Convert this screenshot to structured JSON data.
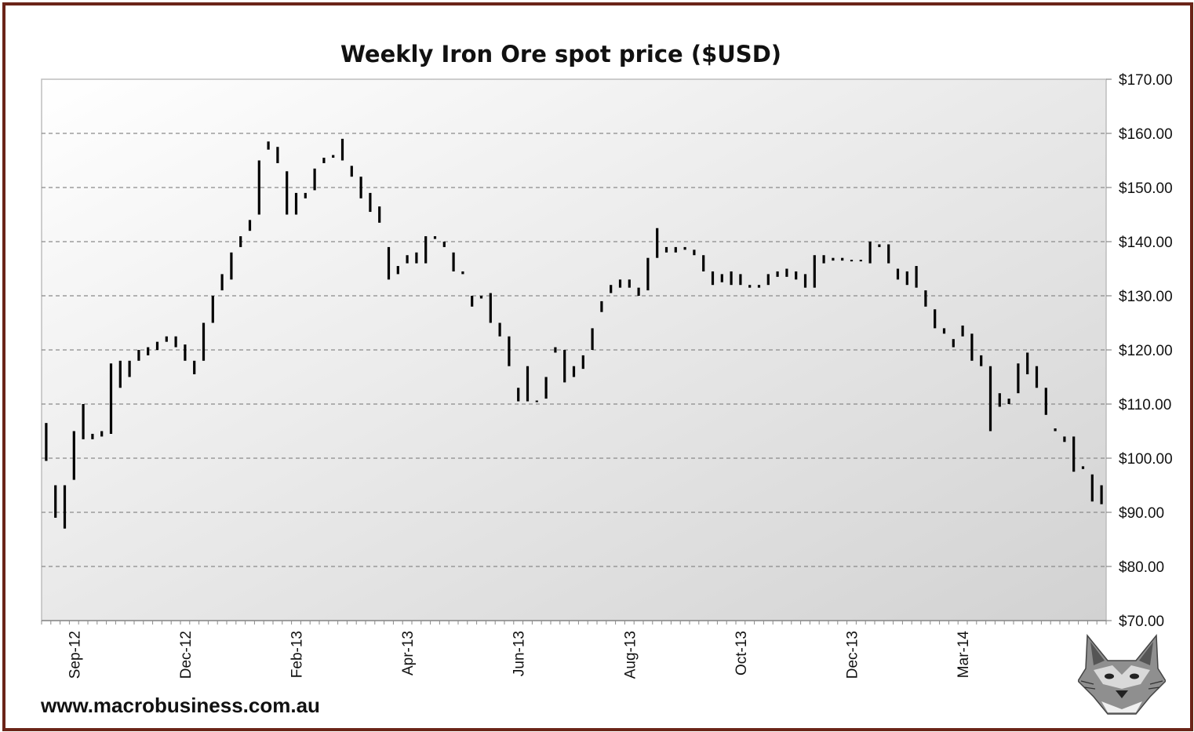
{
  "chart_data": {
    "type": "ohlc",
    "title": "Weekly Iron Ore spot price ($USD)",
    "xlabel": "",
    "ylabel": "",
    "ylim": [
      70,
      170
    ],
    "y_ticks": [
      "$70.00",
      "$80.00",
      "$90.00",
      "$100.00",
      "$110.00",
      "$120.00",
      "$130.00",
      "$140.00",
      "$150.00",
      "$160.00",
      "$170.00"
    ],
    "x_tick_labels": [
      {
        "label": "Sep-12",
        "week": 3
      },
      {
        "label": "Dec-12",
        "week": 15
      },
      {
        "label": "Feb-13",
        "week": 27
      },
      {
        "label": "Apr-13",
        "week": 39
      },
      {
        "label": "Jun-13",
        "week": 51
      },
      {
        "label": "Aug-13",
        "week": 63
      },
      {
        "label": "Oct-13",
        "week": 75
      },
      {
        "label": "Dec-13",
        "week": 87
      },
      {
        "label": "Mar-14",
        "week": 99
      }
    ],
    "grid": true,
    "legend": "none",
    "bars": [
      [
        106.5,
        99.5
      ],
      [
        95,
        89
      ],
      [
        95,
        87
      ],
      [
        105,
        96
      ],
      [
        110,
        103.5
      ],
      [
        104.5,
        103.5
      ],
      [
        105,
        104
      ],
      [
        117.5,
        104.5
      ],
      [
        118,
        113
      ],
      [
        118,
        115
      ],
      [
        120,
        118
      ],
      [
        120.5,
        119
      ],
      [
        121.5,
        120
      ],
      [
        122.5,
        121.5
      ],
      [
        122.5,
        120.5
      ],
      [
        121,
        118
      ],
      [
        118,
        115.5
      ],
      [
        125,
        118
      ],
      [
        130,
        125
      ],
      [
        134,
        131
      ],
      [
        138,
        133
      ],
      [
        141,
        139
      ],
      [
        144,
        142
      ],
      [
        155,
        145
      ],
      [
        158.5,
        157
      ],
      [
        157.5,
        154.5
      ],
      [
        153,
        145
      ],
      [
        149,
        145
      ],
      [
        149,
        148
      ],
      [
        153.5,
        149.5
      ],
      [
        155.5,
        154.5
      ],
      [
        156,
        155.5
      ],
      [
        159,
        155
      ],
      [
        154,
        152
      ],
      [
        152,
        148
      ],
      [
        149,
        145.5
      ],
      [
        146.5,
        143.5
      ],
      [
        139,
        133
      ],
      [
        135.5,
        134
      ],
      [
        137.5,
        136
      ],
      [
        138,
        136
      ],
      [
        141,
        136
      ],
      [
        141,
        140.5
      ],
      [
        140,
        139
      ],
      [
        138,
        134.5
      ],
      [
        134.5,
        134
      ],
      [
        130,
        128
      ],
      [
        130,
        129.5
      ],
      [
        130.5,
        125
      ],
      [
        125,
        122.5
      ],
      [
        122.5,
        117
      ],
      [
        113,
        110.5
      ],
      [
        117,
        110.5
      ],
      [
        110.5,
        110.5
      ],
      [
        115,
        111
      ],
      [
        120.5,
        119.5
      ],
      [
        120,
        114
      ],
      [
        117,
        115
      ],
      [
        119,
        116.5
      ],
      [
        124,
        120
      ],
      [
        129,
        127
      ],
      [
        132,
        130.5
      ],
      [
        133,
        131.5
      ],
      [
        133,
        131.5
      ],
      [
        131.5,
        130
      ],
      [
        137,
        131
      ],
      [
        142.5,
        137
      ],
      [
        139,
        138
      ],
      [
        139,
        138
      ],
      [
        139,
        138.5
      ],
      [
        138.5,
        137.5
      ],
      [
        137.5,
        134.5
      ],
      [
        134.5,
        132
      ],
      [
        134,
        132.5
      ],
      [
        134.5,
        132
      ],
      [
        134,
        132
      ],
      [
        132,
        131.5
      ],
      [
        132,
        131.5
      ],
      [
        134,
        132
      ],
      [
        134.5,
        133.5
      ],
      [
        135,
        133.5
      ],
      [
        134.5,
        133
      ],
      [
        134,
        131.5
      ],
      [
        137.5,
        131.5
      ],
      [
        137.5,
        136
      ],
      [
        137,
        136.5
      ],
      [
        137,
        136.5
      ],
      [
        136.5,
        136.5
      ],
      [
        136.5,
        136.5
      ],
      [
        140,
        136
      ],
      [
        139.5,
        139
      ],
      [
        139.5,
        136
      ],
      [
        135,
        133
      ],
      [
        134.5,
        132
      ],
      [
        135.5,
        131.5
      ],
      [
        131,
        128
      ],
      [
        127.5,
        124
      ],
      [
        124,
        123
      ],
      [
        122,
        120.5
      ],
      [
        124.5,
        122.5
      ],
      [
        123,
        118
      ],
      [
        119,
        117
      ],
      [
        117,
        105
      ],
      [
        112,
        109.5
      ],
      [
        111,
        110
      ],
      [
        117.5,
        112
      ],
      [
        119.5,
        115.5
      ],
      [
        117,
        113
      ],
      [
        113,
        108
      ],
      [
        105.5,
        105
      ],
      [
        104,
        103
      ],
      [
        104,
        97.5
      ],
      [
        98.5,
        98
      ],
      [
        97,
        92
      ],
      [
        95,
        91.5
      ]
    ]
  },
  "website": "www.macrobusiness.com.au"
}
